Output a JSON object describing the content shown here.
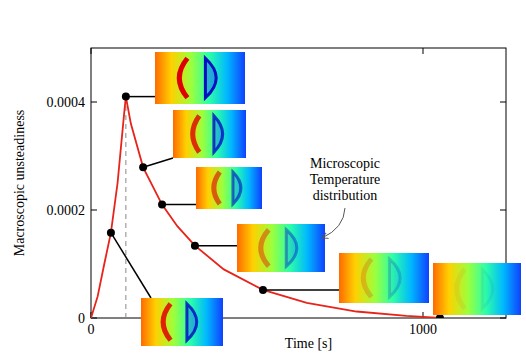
{
  "chart_data": {
    "type": "line",
    "x_label": "Time [s]",
    "y_label": "Macroscopic unsteadiness",
    "annotation": "Microscopic Temperature distribution",
    "xlim": [
      0,
      1250
    ],
    "ylim": [
      0,
      0.0005
    ],
    "xticks": [
      0,
      1000
    ],
    "yticks": [
      0,
      0.0002,
      0.0004
    ],
    "vline": {
      "x": 105,
      "line_style": "dashed"
    },
    "series": [
      {
        "type": "line",
        "color": "#e8231a",
        "line_style": "solid",
        "x": [
          0,
          20,
          40,
          60,
          80,
          100,
          105,
          120,
          157,
          214,
          260,
          313,
          400,
          518,
          650,
          800,
          950,
          1051
        ],
        "values": [
          0,
          4e-05,
          0.0001,
          0.000158,
          0.00025,
          0.00038,
          0.00041,
          0.00036,
          0.000279,
          0.00021,
          0.00017,
          0.000134,
          9e-05,
          5.2e-05,
          2.8e-05,
          1.2e-05,
          4e-06,
          0
        ]
      },
      {
        "type": "scatter",
        "color": "#000000",
        "marker": "circle",
        "x": [
          60,
          105,
          157,
          214,
          313,
          518,
          1051
        ],
        "values": [
          0.000158,
          0.00041,
          0.000279,
          0.00021,
          0.000134,
          5.2e-05,
          0
        ]
      }
    ]
  }
}
